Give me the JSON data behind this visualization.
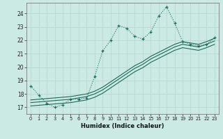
{
  "xlabel": "Humidex (Indice chaleur)",
  "bg_color": "#cceae4",
  "grid_color": "#b8d8d0",
  "line_color": "#1a6a5a",
  "xlim": [
    -0.5,
    23.5
  ],
  "ylim": [
    16.5,
    24.8
  ],
  "yticks": [
    17,
    18,
    19,
    20,
    21,
    22,
    23,
    24
  ],
  "xticks": [
    0,
    1,
    2,
    3,
    4,
    5,
    6,
    7,
    8,
    9,
    10,
    11,
    12,
    13,
    14,
    15,
    16,
    17,
    18,
    19,
    20,
    21,
    22,
    23
  ],
  "series1_x": [
    0,
    1,
    2,
    3,
    4,
    5,
    6,
    7,
    8,
    9,
    10,
    11,
    12,
    13,
    14,
    15,
    16,
    17,
    18,
    19,
    20,
    21,
    22,
    23
  ],
  "series1_y": [
    18.6,
    17.9,
    17.3,
    17.0,
    17.2,
    17.6,
    17.6,
    17.7,
    19.3,
    21.2,
    22.0,
    23.1,
    22.9,
    22.3,
    22.1,
    22.6,
    23.8,
    24.5,
    23.3,
    21.9,
    21.7,
    21.6,
    21.7,
    22.2
  ],
  "series2_x": [
    0,
    1,
    2,
    3,
    4,
    5,
    6,
    7,
    8,
    9,
    10,
    11,
    12,
    13,
    14,
    15,
    16,
    17,
    18,
    19,
    20,
    21,
    22,
    23
  ],
  "series2_y": [
    17.55,
    17.6,
    17.65,
    17.7,
    17.75,
    17.8,
    17.9,
    18.0,
    18.2,
    18.5,
    18.9,
    19.3,
    19.7,
    20.1,
    20.4,
    20.8,
    21.1,
    21.4,
    21.7,
    21.9,
    21.8,
    21.7,
    21.9,
    22.15
  ],
  "series3_x": [
    0,
    1,
    2,
    3,
    4,
    5,
    6,
    7,
    8,
    9,
    10,
    11,
    12,
    13,
    14,
    15,
    16,
    17,
    18,
    19,
    20,
    21,
    22,
    23
  ],
  "series3_y": [
    17.35,
    17.4,
    17.45,
    17.5,
    17.55,
    17.6,
    17.7,
    17.8,
    18.0,
    18.3,
    18.7,
    19.1,
    19.5,
    19.9,
    20.2,
    20.6,
    20.9,
    21.2,
    21.5,
    21.7,
    21.6,
    21.5,
    21.7,
    21.95
  ],
  "series4_x": [
    0,
    1,
    2,
    3,
    4,
    5,
    6,
    7,
    8,
    9,
    10,
    11,
    12,
    13,
    14,
    15,
    16,
    17,
    18,
    19,
    20,
    21,
    22,
    23
  ],
  "series4_y": [
    17.1,
    17.15,
    17.2,
    17.25,
    17.3,
    17.35,
    17.45,
    17.55,
    17.75,
    18.05,
    18.45,
    18.85,
    19.25,
    19.65,
    19.95,
    20.35,
    20.65,
    20.95,
    21.25,
    21.45,
    21.35,
    21.25,
    21.45,
    21.7
  ]
}
